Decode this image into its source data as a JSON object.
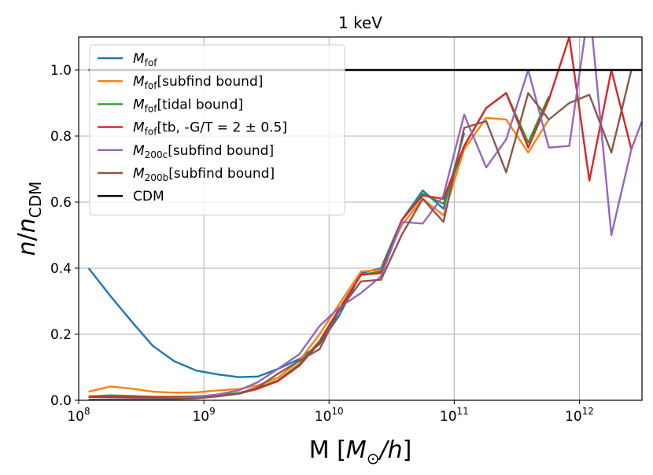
{
  "chart_data": {
    "type": "line",
    "title": "1 keV",
    "xlabel": "M [M_⊙/h]",
    "ylabel": "n/n_CDM",
    "xscale": "log",
    "xlim": [
      100000000.0,
      3160000000000.0
    ],
    "ylim": [
      0.0,
      1.1
    ],
    "grid": true,
    "legend": "top-left",
    "x_ticks": [
      {
        "value": 100000000.0,
        "base": "10",
        "exp": "8"
      },
      {
        "value": 1000000000.0,
        "base": "10",
        "exp": "9"
      },
      {
        "value": 10000000000.0,
        "base": "10",
        "exp": "10"
      },
      {
        "value": 100000000000.0,
        "base": "10",
        "exp": "11"
      },
      {
        "value": 1000000000000.0,
        "base": "10",
        "exp": "12"
      }
    ],
    "y_ticks": [
      "0.0",
      "0.2",
      "0.4",
      "0.6",
      "0.8",
      "1.0"
    ],
    "x": [
      120000000.0,
      180000000.0,
      270000000.0,
      390000000.0,
      580000000.0,
      870000000.0,
      1300000000.0,
      1900000000.0,
      2700000000.0,
      3900000000.0,
      5800000000.0,
      8400000000.0,
      12000000000.0,
      18000000000.0,
      26000000000.0,
      38000000000.0,
      56000000000.0,
      82000000000.0,
      120000000000.0,
      180000000000.0,
      260000000000.0,
      390000000000.0,
      570000000000.0,
      830000000000.0,
      1200000000000.0,
      1800000000000.0,
      2600000000000.0,
      3160000000000.0
    ],
    "series": [
      {
        "name": "M_fof",
        "label_main": "M",
        "label_sub": "fof",
        "label_rest": "",
        "color": "#1f77b4",
        "values": [
          0.4,
          0.315,
          0.235,
          0.165,
          0.118,
          0.09,
          0.078,
          0.07,
          0.072,
          0.095,
          0.125,
          0.17,
          0.255,
          0.385,
          0.4,
          0.545,
          0.635,
          0.58,
          0.81,
          null,
          null,
          null,
          null,
          null,
          null,
          null,
          null,
          null
        ]
      },
      {
        "name": "M_fof[subfind bound]",
        "label_main": "M",
        "label_sub": "fof",
        "label_rest": "[subfind bound]",
        "color": "#ff7f0e",
        "values": [
          0.026,
          0.042,
          0.035,
          0.026,
          0.023,
          0.024,
          0.03,
          0.034,
          0.045,
          0.068,
          0.12,
          0.2,
          0.29,
          0.39,
          0.395,
          0.53,
          0.61,
          0.56,
          0.76,
          0.855,
          0.85,
          0.75,
          0.85,
          null,
          null,
          null,
          null,
          null
        ]
      },
      {
        "name": "M_fof[tidal bound]",
        "label_main": "M",
        "label_sub": "fof",
        "label_rest": "[tidal bound]",
        "color": "#2ca02c",
        "values": [
          0.012,
          0.015,
          0.013,
          0.011,
          0.011,
          0.012,
          0.016,
          0.022,
          0.038,
          0.06,
          0.11,
          0.18,
          0.275,
          0.38,
          0.39,
          0.545,
          0.625,
          0.595,
          0.77,
          0.885,
          0.93,
          0.78,
          0.92,
          null,
          null,
          null,
          null,
          null
        ]
      },
      {
        "name": "M_fof[tb, -G/T = 2 ± 0.5]",
        "label_main": "M",
        "label_sub": "fof",
        "label_rest": "[tb, -G/T = 2 ± 0.5]",
        "color": "#d62728",
        "values": [
          0.01,
          0.01,
          0.009,
          0.009,
          0.009,
          0.01,
          0.013,
          0.02,
          0.035,
          0.058,
          0.105,
          0.175,
          0.275,
          0.38,
          0.385,
          0.545,
          0.62,
          0.61,
          0.77,
          0.885,
          0.93,
          0.765,
          0.91,
          1.1,
          0.665,
          1.0,
          0.76,
          null
        ]
      },
      {
        "name": "M_200c[subfind bound]",
        "label_main": "M",
        "label_sub": "200c",
        "label_rest": "[subfind bound]",
        "color": "#9467bd",
        "values": [
          0.002,
          0.003,
          0.003,
          0.004,
          0.006,
          0.01,
          0.018,
          0.03,
          0.055,
          0.095,
          0.14,
          0.225,
          0.28,
          0.325,
          0.375,
          0.54,
          0.535,
          0.62,
          0.865,
          0.705,
          0.79,
          1.0,
          0.765,
          0.77,
          1.2,
          0.5,
          0.76,
          0.845
        ]
      },
      {
        "name": "M_200b[subfind bound]",
        "label_main": "M",
        "label_sub": "200b",
        "label_rest": "[subfind bound]",
        "color": "#8c564b",
        "values": [
          0.002,
          0.002,
          0.002,
          0.003,
          0.004,
          0.006,
          0.012,
          0.02,
          0.04,
          0.08,
          0.12,
          0.155,
          0.27,
          0.36,
          0.365,
          0.5,
          0.61,
          0.54,
          0.825,
          0.845,
          0.69,
          0.93,
          0.85,
          0.9,
          0.925,
          0.75,
          1.0,
          null
        ]
      },
      {
        "name": "CDM",
        "label_main": "",
        "label_sub": "",
        "label_rest": "CDM",
        "color": "#000000",
        "values": [
          1.0,
          1.0,
          1.0,
          1.0,
          1.0,
          1.0,
          1.0,
          1.0,
          1.0,
          1.0,
          1.0,
          1.0,
          1.0,
          1.0,
          1.0,
          1.0,
          1.0,
          1.0,
          1.0,
          1.0,
          1.0,
          1.0,
          1.0,
          1.0,
          1.0,
          1.0,
          1.0,
          1.0
        ]
      }
    ]
  }
}
